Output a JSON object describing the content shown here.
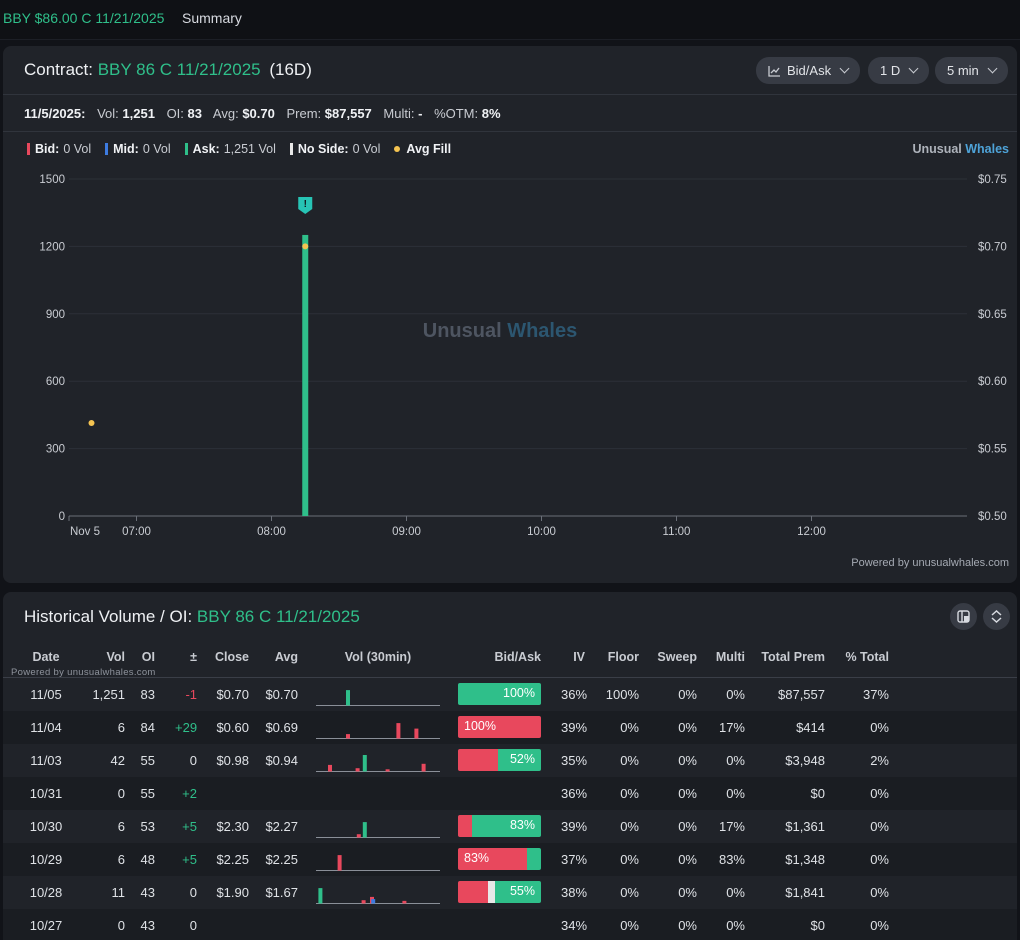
{
  "topbar": {
    "ticker": "BBY $86.00 C 11/21/2025",
    "tab": "Summary"
  },
  "contract": {
    "label": "Contract:",
    "name": "BBY 86 C 11/21/2025",
    "days": "(16D)",
    "buttons": {
      "chart_type": "Bid/Ask",
      "range": "1 D",
      "interval": "5 min"
    }
  },
  "stats": {
    "date": "11/5/2025:",
    "vol_label": "Vol:",
    "vol": "1,251",
    "oi_label": "OI:",
    "oi": "83",
    "avg_label": "Avg:",
    "avg": "$0.70",
    "prem_label": "Prem:",
    "prem": "$87,557",
    "multi_label": "Multi:",
    "multi": "-",
    "otm_label": "%OTM:",
    "otm": "8%"
  },
  "legend": {
    "bid_label": "Bid:",
    "bid_val": "0 Vol",
    "mid_label": "Mid:",
    "mid_val": "0 Vol",
    "ask_label": "Ask:",
    "ask_val": "1,251 Vol",
    "noside_label": "No Side:",
    "noside_val": "0 Vol",
    "avgfill_label": "Avg Fill"
  },
  "brand": {
    "a": "Unusual",
    "b": "Whales"
  },
  "watermark": {
    "a": "Unusual",
    "b": "Whales"
  },
  "powered": "Powered by unusualwhales.com",
  "colors": {
    "ask": "#2fbf8a",
    "bid": "#e8485d",
    "mid": "#3d7be0",
    "noside": "#e8e8e8",
    "avg_fill": "#f5c451",
    "accent": "#2fbf8a"
  },
  "chart_data": {
    "type": "bar",
    "x_ticks": [
      "Nov 5",
      "07:00",
      "08:00",
      "09:00",
      "10:00",
      "11:00",
      "12:00"
    ],
    "y_left_ticks": [
      "0",
      "300",
      "600",
      "900",
      "1200",
      "1500"
    ],
    "y_right_ticks": [
      "$0.50",
      "$0.55",
      "$0.60",
      "$0.65",
      "$0.70",
      "$0.75"
    ],
    "ylim_left": [
      0,
      1500
    ],
    "ylim_right": [
      0.5,
      0.75
    ],
    "bars": [
      {
        "time": "08:15",
        "side": "ask",
        "value": 1251
      }
    ],
    "avg_fill": [
      {
        "time": "06:40",
        "price": 0.569
      },
      {
        "time": "08:15",
        "price": 0.7
      }
    ],
    "annotations": [
      {
        "time": "08:15",
        "label": "!"
      }
    ]
  },
  "history": {
    "title_label": "Historical Volume / OI:",
    "title_contract": "BBY 86 C 11/21/2025",
    "powered": "Powered by unusualwhales.com",
    "headers": [
      "Date",
      "Vol",
      "OI",
      "±",
      "Close",
      "Avg",
      "Vol (30min)",
      "Bid/Ask",
      "IV",
      "Floor",
      "Sweep",
      "Multi",
      "Total Prem",
      "% Total"
    ],
    "rows": [
      {
        "date": "11/05",
        "vol": "1,251",
        "oi": "83",
        "chg": "-1",
        "close": "$0.70",
        "avg": "$0.70",
        "bid": 0,
        "mid": 0,
        "noside": 0,
        "ask": 100,
        "ba_label": "100%",
        "ba_side": "ask",
        "iv": "36%",
        "floor": "100%",
        "sweep": "0%",
        "multi": "0%",
        "prem": "$87,557",
        "pct": "37%",
        "spark": [
          {
            "pos": 0.25,
            "h": 0.7,
            "side": "ask"
          }
        ]
      },
      {
        "date": "11/04",
        "vol": "6",
        "oi": "84",
        "chg": "+29",
        "close": "$0.60",
        "avg": "$0.69",
        "bid": 100,
        "mid": 0,
        "noside": 0,
        "ask": 0,
        "ba_label": "100%",
        "ba_side": "bid",
        "iv": "39%",
        "floor": "0%",
        "sweep": "0%",
        "multi": "17%",
        "prem": "$414",
        "pct": "0%",
        "spark": [
          {
            "pos": 0.25,
            "h": 0.2,
            "side": "bid"
          },
          {
            "pos": 0.67,
            "h": 0.7,
            "side": "bid"
          },
          {
            "pos": 0.82,
            "h": 0.45,
            "side": "bid"
          }
        ]
      },
      {
        "date": "11/03",
        "vol": "42",
        "oi": "55",
        "chg": "0",
        "close": "$0.98",
        "avg": "$0.94",
        "bid": 48,
        "mid": 0,
        "noside": 0,
        "ask": 52,
        "ba_label": "52%",
        "ba_side": "ask",
        "iv": "35%",
        "floor": "0%",
        "sweep": "0%",
        "multi": "0%",
        "prem": "$3,948",
        "pct": "2%",
        "spark": [
          {
            "pos": 0.1,
            "h": 0.3,
            "side": "bid"
          },
          {
            "pos": 0.33,
            "h": 0.15,
            "side": "bid"
          },
          {
            "pos": 0.39,
            "h": 0.75,
            "side": "ask"
          },
          {
            "pos": 0.58,
            "h": 0.1,
            "side": "bid"
          },
          {
            "pos": 0.88,
            "h": 0.35,
            "side": "bid"
          }
        ]
      },
      {
        "date": "10/31",
        "vol": "0",
        "oi": "55",
        "chg": "+2",
        "close": "",
        "avg": "",
        "bid": 0,
        "mid": 0,
        "noside": 0,
        "ask": 0,
        "ba_label": "",
        "ba_side": "",
        "iv": "36%",
        "floor": "0%",
        "sweep": "0%",
        "multi": "0%",
        "prem": "$0",
        "pct": "0%",
        "spark": []
      },
      {
        "date": "10/30",
        "vol": "6",
        "oi": "53",
        "chg": "+5",
        "close": "$2.30",
        "avg": "$2.27",
        "bid": 17,
        "mid": 0,
        "noside": 0,
        "ask": 83,
        "ba_label": "83%",
        "ba_side": "ask",
        "iv": "39%",
        "floor": "0%",
        "sweep": "0%",
        "multi": "17%",
        "prem": "$1,361",
        "pct": "0%",
        "spark": [
          {
            "pos": 0.34,
            "h": 0.15,
            "side": "bid"
          },
          {
            "pos": 0.39,
            "h": 0.7,
            "side": "ask"
          }
        ]
      },
      {
        "date": "10/29",
        "vol": "6",
        "oi": "48",
        "chg": "+5",
        "close": "$2.25",
        "avg": "$2.25",
        "bid": 83,
        "mid": 0,
        "noside": 0,
        "ask": 17,
        "ba_label": "83%",
        "ba_side": "bid",
        "iv": "37%",
        "floor": "0%",
        "sweep": "0%",
        "multi": "83%",
        "prem": "$1,348",
        "pct": "0%",
        "spark": [
          {
            "pos": 0.18,
            "h": 0.7,
            "side": "bid"
          }
        ]
      },
      {
        "date": "10/28",
        "vol": "11",
        "oi": "43",
        "chg": "0",
        "close": "$1.90",
        "avg": "$1.67",
        "bid": 36,
        "mid": 0,
        "noside": 9,
        "ask": 55,
        "ba_label": "55%",
        "ba_side": "ask",
        "iv": "38%",
        "floor": "0%",
        "sweep": "0%",
        "multi": "0%",
        "prem": "$1,841",
        "pct": "0%",
        "spark": [
          {
            "pos": 0.02,
            "h": 0.7,
            "side": "ask"
          },
          {
            "pos": 0.38,
            "h": 0.15,
            "side": "bid"
          },
          {
            "pos": 0.45,
            "h": 0.3,
            "side": "bid"
          },
          {
            "pos": 0.46,
            "h": 0.2,
            "side": "mid"
          },
          {
            "pos": 0.72,
            "h": 0.12,
            "side": "bid"
          }
        ]
      },
      {
        "date": "10/27",
        "vol": "0",
        "oi": "43",
        "chg": "0",
        "close": "",
        "avg": "",
        "bid": 0,
        "mid": 0,
        "noside": 0,
        "ask": 0,
        "ba_label": "",
        "ba_side": "",
        "iv": "34%",
        "floor": "0%",
        "sweep": "0%",
        "multi": "0%",
        "prem": "$0",
        "pct": "0%",
        "spark": []
      }
    ]
  }
}
